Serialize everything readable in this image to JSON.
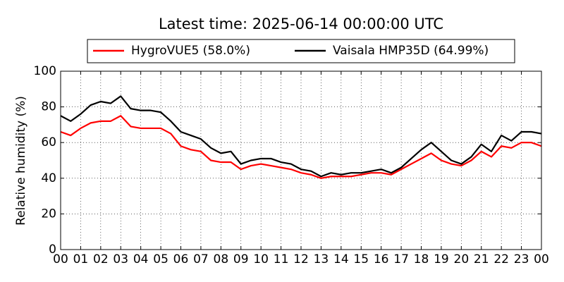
{
  "chart_data": {
    "type": "line",
    "title": "Latest time: 2025-06-14 00:00:00 UTC",
    "ylabel": "Relative humidity (%)",
    "x": [
      0,
      0.5,
      1,
      1.5,
      2,
      2.5,
      3,
      3.5,
      4,
      4.5,
      5,
      5.5,
      6,
      6.5,
      7,
      7.5,
      8,
      8.5,
      9,
      9.5,
      10,
      10.5,
      11,
      11.5,
      12,
      12.5,
      13,
      13.5,
      14,
      14.5,
      15,
      15.5,
      16,
      16.5,
      17,
      17.5,
      18,
      18.5,
      19,
      19.5,
      20,
      20.5,
      21,
      21.5,
      22,
      22.5,
      23,
      23.5,
      24
    ],
    "series": [
      {
        "name": "HygroVUE5 (58.0%)",
        "color": "#ff0000",
        "values": [
          66,
          64,
          68,
          71,
          72,
          72,
          75,
          69,
          68,
          68,
          68,
          65,
          58,
          56,
          55,
          50,
          49,
          49,
          45,
          47,
          48,
          47,
          46,
          45,
          43,
          42,
          40,
          41,
          41,
          41,
          42,
          43,
          43,
          42,
          45,
          48,
          51,
          54,
          50,
          48,
          47,
          50,
          55,
          52,
          58,
          57,
          60,
          60,
          58
        ]
      },
      {
        "name": "Vaisala HMP35D (64.99%)",
        "color": "#000000",
        "values": [
          75,
          72,
          76,
          81,
          83,
          82,
          86,
          79,
          78,
          78,
          77,
          72,
          66,
          64,
          62,
          57,
          54,
          55,
          48,
          50,
          51,
          51,
          49,
          48,
          45,
          44,
          41,
          43,
          42,
          43,
          43,
          44,
          45,
          43,
          46,
          51,
          56,
          60,
          55,
          50,
          48,
          52,
          59,
          55,
          64,
          61,
          66,
          66,
          65
        ]
      }
    ],
    "xlim": [
      0,
      24
    ],
    "xticks": [
      {
        "value": 0,
        "label": "00"
      },
      {
        "value": 1,
        "label": "01"
      },
      {
        "value": 2,
        "label": "02"
      },
      {
        "value": 3,
        "label": "03"
      },
      {
        "value": 4,
        "label": "04"
      },
      {
        "value": 5,
        "label": "05"
      },
      {
        "value": 6,
        "label": "06"
      },
      {
        "value": 7,
        "label": "07"
      },
      {
        "value": 8,
        "label": "08"
      },
      {
        "value": 9,
        "label": "09"
      },
      {
        "value": 10,
        "label": "10"
      },
      {
        "value": 11,
        "label": "11"
      },
      {
        "value": 12,
        "label": "12"
      },
      {
        "value": 13,
        "label": "13"
      },
      {
        "value": 14,
        "label": "14"
      },
      {
        "value": 15,
        "label": "15"
      },
      {
        "value": 16,
        "label": "16"
      },
      {
        "value": 17,
        "label": "17"
      },
      {
        "value": 18,
        "label": "18"
      },
      {
        "value": 19,
        "label": "19"
      },
      {
        "value": 20,
        "label": "20"
      },
      {
        "value": 21,
        "label": "21"
      },
      {
        "value": 22,
        "label": "22"
      },
      {
        "value": 23,
        "label": "23"
      },
      {
        "value": 24,
        "label": "00"
      }
    ],
    "ylim": [
      0,
      100
    ],
    "yticks": [
      0,
      20,
      40,
      60,
      80,
      100
    ],
    "grid": true,
    "legend": "top"
  }
}
